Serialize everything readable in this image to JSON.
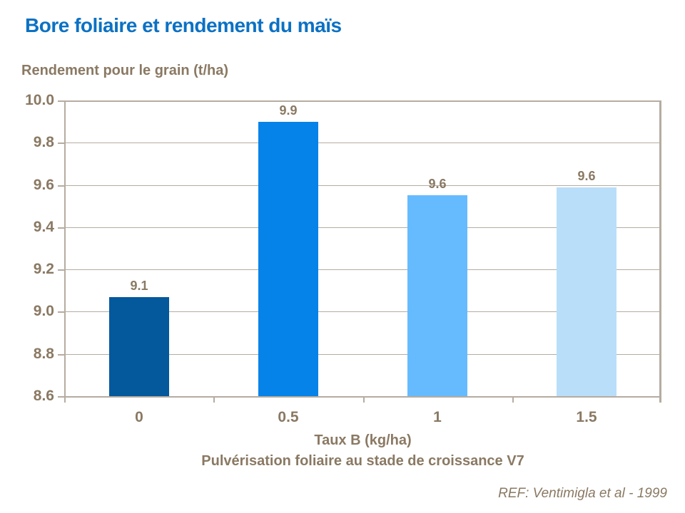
{
  "header": {
    "title": "Bore foliaire et rendement du maïs"
  },
  "footer": {
    "reference": "REF: Ventimigla et al - 1999"
  },
  "colors": {
    "title_blue": "#0b71c4",
    "text_brown": "#8a7963",
    "grid_line": "#b5aca1",
    "plot_border": "#b0a79c",
    "bar_colors": [
      "#04589c",
      "#0583e8",
      "#66bbff",
      "#b9def9"
    ]
  },
  "chart_data": {
    "type": "bar",
    "title": "Bore foliaire et rendement du maïs",
    "ylabel": "Rendement pour le grain (t/ha)",
    "xlabel": "Taux B (kg/ha)",
    "xlabel2": "Pulvérisation foliaire au stade de croissance V7",
    "categories": [
      "0",
      "0.5",
      "1",
      "1.5"
    ],
    "values": [
      9.07,
      9.9,
      9.55,
      9.59
    ],
    "value_labels": [
      "9.1",
      "9.9",
      "9.6",
      "9.6"
    ],
    "ylim": [
      8.6,
      10.0
    ],
    "ytick_step": 0.2,
    "yticks": [
      "10.0",
      "9.8",
      "9.6",
      "9.4",
      "9.2",
      "9.0",
      "8.8",
      "8.6"
    ],
    "grid": true,
    "legend": false
  }
}
